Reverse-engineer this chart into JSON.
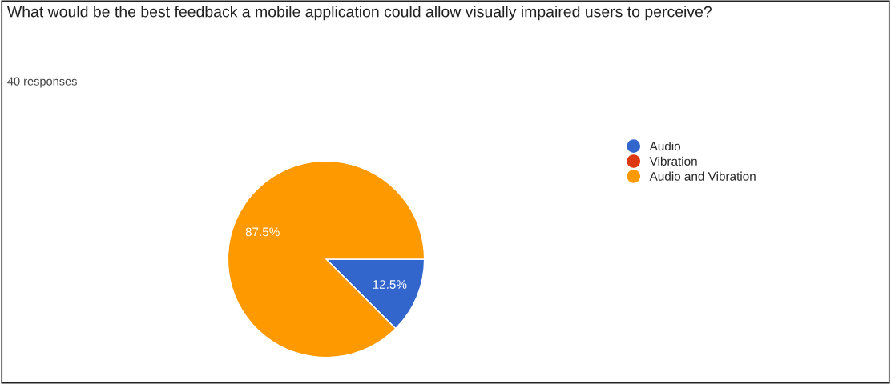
{
  "chart_data": {
    "type": "pie",
    "title": "What would be the best feedback a mobile application could allow visually impaired users to perceive?",
    "subtitle": "40 responses",
    "categories": [
      "Audio",
      "Vibration",
      "Audio and Vibration"
    ],
    "values": [
      12.5,
      0,
      87.5
    ],
    "colors": [
      "#3366cc",
      "#dc3912",
      "#ff9900"
    ],
    "value_labels": [
      "12.5%",
      null,
      "87.5%"
    ],
    "legend": "right"
  }
}
